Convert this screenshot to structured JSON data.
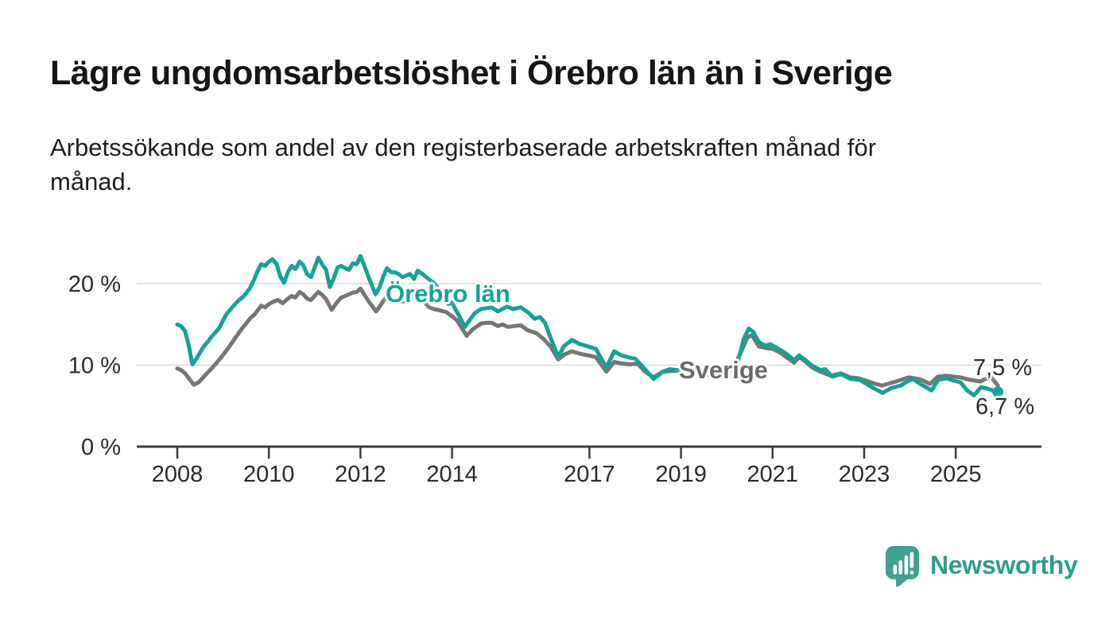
{
  "header": {
    "title": "Lägre ungdomsarbetslöshet i Örebro län än i Sverige",
    "subtitle_lines": [
      "Arbetssökande som andel av den registerbaserade arbetskraften månad för",
      "månad."
    ]
  },
  "chart_data": {
    "type": "line",
    "title": "Lägre ungdomsarbetslöshet i Örebro län än i Sverige",
    "subtitle": "Arbetssökande som andel av den registerbaserade arbetskraften månad för månad.",
    "unit": "percent of registered labour force",
    "x_axis": {
      "tick_years": [
        2008,
        2010,
        2012,
        2014,
        2017,
        2019,
        2021,
        2023,
        2025
      ],
      "tick_labels": [
        "2008",
        "2010",
        "2012",
        "2014",
        "2017",
        "2019",
        "2021",
        "2023",
        "2025"
      ],
      "range_years": [
        2007.1,
        2026.9
      ]
    },
    "y_axis": {
      "tick_values": [
        0,
        10,
        20
      ],
      "tick_labels": [
        "0 %",
        "10 %",
        "20 %"
      ],
      "grid_values": [
        10,
        20
      ],
      "range": [
        0,
        24.5
      ],
      "grid_color": "#dcdcdc",
      "axis_color": "#3d3d3d",
      "label_color": "#2b2b2b"
    },
    "series": [
      {
        "name": "Sverige",
        "color": "#767676",
        "label_color": "#6b6b6b",
        "end_label": "7,5 %",
        "end_value": 7.5,
        "end_marker": false,
        "points": [
          [
            2008,
            9.6
          ],
          [
            2008.08,
            9.4
          ],
          [
            2008.17,
            9.0
          ],
          [
            2008.25,
            8.4
          ],
          [
            2008.36,
            7.6
          ],
          [
            2008.47,
            7.9
          ],
          [
            2008.58,
            8.6
          ],
          [
            2008.7,
            9.3
          ],
          [
            2008.83,
            10.1
          ],
          [
            2008.95,
            10.9
          ],
          [
            2009.1,
            12.0
          ],
          [
            2009.25,
            13.2
          ],
          [
            2009.4,
            14.4
          ],
          [
            2009.5,
            15.1
          ],
          [
            2009.6,
            15.8
          ],
          [
            2009.7,
            16.3
          ],
          [
            2009.83,
            17.3
          ],
          [
            2009.92,
            17.1
          ],
          [
            2010,
            17.5
          ],
          [
            2010.1,
            17.8
          ],
          [
            2010.2,
            18.0
          ],
          [
            2010.3,
            17.6
          ],
          [
            2010.42,
            18.2
          ],
          [
            2010.5,
            18.5
          ],
          [
            2010.58,
            18.3
          ],
          [
            2010.67,
            19.0
          ],
          [
            2010.75,
            18.7
          ],
          [
            2010.83,
            18.2
          ],
          [
            2010.92,
            18.0
          ],
          [
            2011,
            18.5
          ],
          [
            2011.08,
            19.0
          ],
          [
            2011.17,
            18.6
          ],
          [
            2011.25,
            18.1
          ],
          [
            2011.37,
            16.8
          ],
          [
            2011.5,
            17.8
          ],
          [
            2011.58,
            18.3
          ],
          [
            2011.67,
            18.5
          ],
          [
            2011.75,
            18.7
          ],
          [
            2011.83,
            18.9
          ],
          [
            2011.92,
            19.0
          ],
          [
            2012,
            19.4
          ],
          [
            2012.08,
            18.7
          ],
          [
            2012.17,
            17.9
          ],
          [
            2012.25,
            17.3
          ],
          [
            2012.34,
            16.6
          ],
          [
            2012.42,
            17.2
          ],
          [
            2012.5,
            17.9
          ],
          [
            2012.58,
            18.4
          ],
          [
            2012.67,
            18.2
          ],
          [
            2012.75,
            18.0
          ],
          [
            2012.83,
            17.9
          ],
          [
            2012.93,
            17.8
          ],
          [
            2013.05,
            18.3
          ],
          [
            2013.15,
            18.6
          ],
          [
            2013.25,
            18.4
          ],
          [
            2013.33,
            18.0
          ],
          [
            2013.42,
            17.6
          ],
          [
            2013.5,
            17.1
          ],
          [
            2013.6,
            16.9
          ],
          [
            2013.75,
            16.7
          ],
          [
            2013.88,
            16.5
          ],
          [
            2014,
            16.0
          ],
          [
            2014.11,
            15.5
          ],
          [
            2014.32,
            13.6
          ],
          [
            2014.45,
            14.4
          ],
          [
            2014.63,
            15.1
          ],
          [
            2014.75,
            15.2
          ],
          [
            2014.87,
            15.2
          ],
          [
            2015,
            14.8
          ],
          [
            2015.1,
            15.0
          ],
          [
            2015.22,
            14.7
          ],
          [
            2015.35,
            14.8
          ],
          [
            2015.5,
            14.9
          ],
          [
            2015.65,
            14.3
          ],
          [
            2015.85,
            13.9
          ],
          [
            2016,
            13.2
          ],
          [
            2016.15,
            12.3
          ],
          [
            2016.32,
            10.7
          ],
          [
            2016.45,
            11.3
          ],
          [
            2016.62,
            11.7
          ],
          [
            2016.79,
            11.4
          ],
          [
            2016.97,
            11.2
          ],
          [
            2017.14,
            11.0
          ],
          [
            2017.37,
            9.2
          ],
          [
            2017.54,
            10.4
          ],
          [
            2017.7,
            10.2
          ],
          [
            2017.9,
            10.1
          ],
          [
            2018.05,
            10.2
          ],
          [
            2018.2,
            9.3
          ],
          [
            2018.4,
            8.5
          ],
          [
            2018.6,
            9.2
          ],
          [
            2018.8,
            9.3
          ],
          [
            2018.95,
            9.3
          ],
          [
            2019.1,
            9.5
          ],
          [
            2019.3,
            9.4
          ],
          [
            2019.5,
            9.0
          ],
          [
            2019.7,
            8.7
          ],
          [
            2019.85,
            8.5
          ],
          [
            2020,
            9.0
          ],
          [
            2020.15,
            9.8
          ],
          [
            2020.3,
            11.5
          ],
          [
            2020.45,
            13.4
          ],
          [
            2020.55,
            13.7
          ],
          [
            2020.7,
            12.3
          ],
          [
            2020.87,
            12.1
          ],
          [
            2021,
            12.0
          ],
          [
            2021.15,
            11.6
          ],
          [
            2021.3,
            11.0
          ],
          [
            2021.47,
            10.3
          ],
          [
            2021.58,
            11.0
          ],
          [
            2021.7,
            10.5
          ],
          [
            2021.87,
            9.7
          ],
          [
            2022.05,
            9.2
          ],
          [
            2022.27,
            8.7
          ],
          [
            2022.49,
            9.0
          ],
          [
            2022.69,
            8.5
          ],
          [
            2022.87,
            8.4
          ],
          [
            2023.09,
            8.0
          ],
          [
            2023.25,
            7.7
          ],
          [
            2023.39,
            7.5
          ],
          [
            2023.57,
            7.8
          ],
          [
            2023.75,
            8.1
          ],
          [
            2023.97,
            8.5
          ],
          [
            2024.1,
            8.4
          ],
          [
            2024.25,
            8.2
          ],
          [
            2024.44,
            7.7
          ],
          [
            2024.61,
            8.6
          ],
          [
            2024.79,
            8.7
          ],
          [
            2024.95,
            8.6
          ],
          [
            2025.1,
            8.5
          ],
          [
            2025.31,
            8.2
          ],
          [
            2025.54,
            8.0
          ],
          [
            2025.65,
            8.3
          ],
          [
            2025.78,
            8.5
          ],
          [
            2025.92,
            7.5
          ]
        ]
      },
      {
        "name": "Örebro län",
        "color": "#16a195",
        "label_color": "#16a195",
        "end_label": "6,7 %",
        "end_value": 6.7,
        "end_marker": true,
        "points": [
          [
            2008,
            15.0
          ],
          [
            2008.08,
            14.8
          ],
          [
            2008.17,
            14.2
          ],
          [
            2008.25,
            12.4
          ],
          [
            2008.33,
            10.1
          ],
          [
            2008.42,
            10.8
          ],
          [
            2008.5,
            11.6
          ],
          [
            2008.58,
            12.3
          ],
          [
            2008.67,
            12.9
          ],
          [
            2008.75,
            13.5
          ],
          [
            2008.83,
            14.0
          ],
          [
            2008.92,
            14.6
          ],
          [
            2009,
            15.5
          ],
          [
            2009.08,
            16.3
          ],
          [
            2009.17,
            16.9
          ],
          [
            2009.25,
            17.4
          ],
          [
            2009.33,
            17.9
          ],
          [
            2009.42,
            18.3
          ],
          [
            2009.5,
            18.8
          ],
          [
            2009.58,
            19.4
          ],
          [
            2009.67,
            20.4
          ],
          [
            2009.75,
            21.5
          ],
          [
            2009.83,
            22.4
          ],
          [
            2009.92,
            22.2
          ],
          [
            2010,
            22.7
          ],
          [
            2010.08,
            23.0
          ],
          [
            2010.17,
            22.4
          ],
          [
            2010.25,
            20.9
          ],
          [
            2010.33,
            20.1
          ],
          [
            2010.42,
            21.5
          ],
          [
            2010.5,
            22.2
          ],
          [
            2010.58,
            21.8
          ],
          [
            2010.67,
            22.7
          ],
          [
            2010.75,
            22.3
          ],
          [
            2010.83,
            21.2
          ],
          [
            2010.92,
            20.8
          ],
          [
            2011,
            22.0
          ],
          [
            2011.08,
            23.2
          ],
          [
            2011.17,
            22.3
          ],
          [
            2011.25,
            21.7
          ],
          [
            2011.33,
            19.6
          ],
          [
            2011.42,
            20.7
          ],
          [
            2011.5,
            22.0
          ],
          [
            2011.58,
            22.2
          ],
          [
            2011.67,
            21.9
          ],
          [
            2011.75,
            21.7
          ],
          [
            2011.83,
            22.5
          ],
          [
            2011.92,
            22.4
          ],
          [
            2012,
            23.4
          ],
          [
            2012.08,
            22.3
          ],
          [
            2012.17,
            20.9
          ],
          [
            2012.25,
            19.8
          ],
          [
            2012.33,
            18.7
          ],
          [
            2012.42,
            19.6
          ],
          [
            2012.5,
            20.9
          ],
          [
            2012.58,
            21.9
          ],
          [
            2012.67,
            21.4
          ],
          [
            2012.75,
            21.4
          ],
          [
            2012.83,
            21.2
          ],
          [
            2012.92,
            20.8
          ],
          [
            2013,
            21.0
          ],
          [
            2013.08,
            21.2
          ],
          [
            2013.17,
            20.6
          ],
          [
            2013.25,
            21.6
          ],
          [
            2013.33,
            21.3
          ],
          [
            2013.42,
            20.9
          ],
          [
            2013.5,
            20.5
          ],
          [
            2013.58,
            20.2
          ],
          [
            2013.67,
            19.7
          ],
          [
            2013.75,
            18.3
          ],
          [
            2013.83,
            17.9
          ],
          [
            2013.92,
            17.5
          ],
          [
            2014,
            17.7
          ],
          [
            2014.08,
            16.8
          ],
          [
            2014.17,
            15.9
          ],
          [
            2014.28,
            14.7
          ],
          [
            2014.42,
            15.8
          ],
          [
            2014.5,
            16.4
          ],
          [
            2014.63,
            16.9
          ],
          [
            2014.75,
            17.0
          ],
          [
            2014.87,
            17.1
          ],
          [
            2015,
            16.6
          ],
          [
            2015.1,
            16.9
          ],
          [
            2015.2,
            17.2
          ],
          [
            2015.33,
            16.9
          ],
          [
            2015.5,
            17.1
          ],
          [
            2015.68,
            16.4
          ],
          [
            2015.8,
            15.7
          ],
          [
            2015.92,
            15.9
          ],
          [
            2016.03,
            15.2
          ],
          [
            2016.15,
            13.4
          ],
          [
            2016.32,
            11.0
          ],
          [
            2016.44,
            12.3
          ],
          [
            2016.62,
            13.1
          ],
          [
            2016.79,
            12.6
          ],
          [
            2016.97,
            12.3
          ],
          [
            2017.14,
            12.0
          ],
          [
            2017.37,
            9.7
          ],
          [
            2017.54,
            11.7
          ],
          [
            2017.7,
            11.2
          ],
          [
            2017.9,
            10.9
          ],
          [
            2018,
            10.8
          ],
          [
            2018.2,
            9.6
          ],
          [
            2018.4,
            8.3
          ],
          [
            2018.6,
            9.2
          ],
          [
            2018.75,
            9.5
          ],
          [
            2018.9,
            9.4
          ],
          [
            2019.05,
            9.5
          ],
          [
            2019.2,
            9.6
          ],
          [
            2019.4,
            9.2
          ],
          [
            2019.6,
            8.9
          ],
          [
            2019.8,
            8.8
          ],
          [
            2019.95,
            9.3
          ],
          [
            2020.1,
            10.0
          ],
          [
            2020.25,
            10.6
          ],
          [
            2020.37,
            13.2
          ],
          [
            2020.48,
            14.5
          ],
          [
            2020.58,
            14.1
          ],
          [
            2020.7,
            12.8
          ],
          [
            2020.85,
            12.4
          ],
          [
            2020.95,
            12.6
          ],
          [
            2021.1,
            12.1
          ],
          [
            2021.3,
            11.4
          ],
          [
            2021.47,
            10.6
          ],
          [
            2021.58,
            11.2
          ],
          [
            2021.7,
            10.7
          ],
          [
            2021.87,
            9.9
          ],
          [
            2022.05,
            9.4
          ],
          [
            2022.15,
            9.5
          ],
          [
            2022.3,
            8.6
          ],
          [
            2022.5,
            8.9
          ],
          [
            2022.7,
            8.3
          ],
          [
            2022.9,
            8.2
          ],
          [
            2023.05,
            7.7
          ],
          [
            2023.2,
            7.2
          ],
          [
            2023.4,
            6.6
          ],
          [
            2023.6,
            7.2
          ],
          [
            2023.8,
            7.5
          ],
          [
            2023.97,
            8.1
          ],
          [
            2024.07,
            8.3
          ],
          [
            2024.2,
            7.8
          ],
          [
            2024.35,
            7.3
          ],
          [
            2024.47,
            6.9
          ],
          [
            2024.62,
            8.2
          ],
          [
            2024.8,
            8.4
          ],
          [
            2024.95,
            8.1
          ],
          [
            2025.1,
            7.9
          ],
          [
            2025.25,
            6.9
          ],
          [
            2025.4,
            6.3
          ],
          [
            2025.55,
            7.3
          ],
          [
            2025.7,
            7.1
          ],
          [
            2025.92,
            6.7
          ]
        ]
      }
    ],
    "legend_position": "inline-labels",
    "grid": "horizontal-only"
  },
  "branding": {
    "logo_text": "Newsworthy",
    "logo_text_color": "#2d9c8e",
    "logo_icon_color": "#3da291"
  }
}
